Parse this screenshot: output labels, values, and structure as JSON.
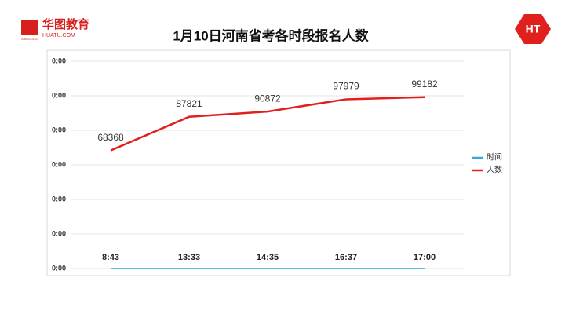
{
  "logo": {
    "name": "华图教育",
    "url": "HUATU.COM",
    "since": "SINCE 2001"
  },
  "badge": "HT",
  "chart_data": {
    "type": "line",
    "title": "1月10日河南省考各时段报名人数",
    "categories": [
      "8:43",
      "13:33",
      "14:35",
      "16:37",
      "17:00"
    ],
    "series": [
      {
        "name": "时间",
        "color": "#2eaadc",
        "values": [
          0.363,
          0.565,
          0.608,
          0.692,
          0.708
        ]
      },
      {
        "name": "人数",
        "color": "#e0201c",
        "values": [
          68368,
          87821,
          90872,
          97979,
          99182
        ]
      }
    ],
    "ylim": [
      0,
      120000
    ],
    "yticks": [
      {
        "value": 0,
        "label": "0:00"
      },
      {
        "value": 20000,
        "label": "0:00"
      },
      {
        "value": 40000,
        "label": "0:00"
      },
      {
        "value": 60000,
        "label": "0:00"
      },
      {
        "value": 80000,
        "label": "0:00"
      },
      {
        "value": 100000,
        "label": "0:00"
      },
      {
        "value": 120000,
        "label": "0:00"
      }
    ],
    "grid": true,
    "legend": "right"
  }
}
